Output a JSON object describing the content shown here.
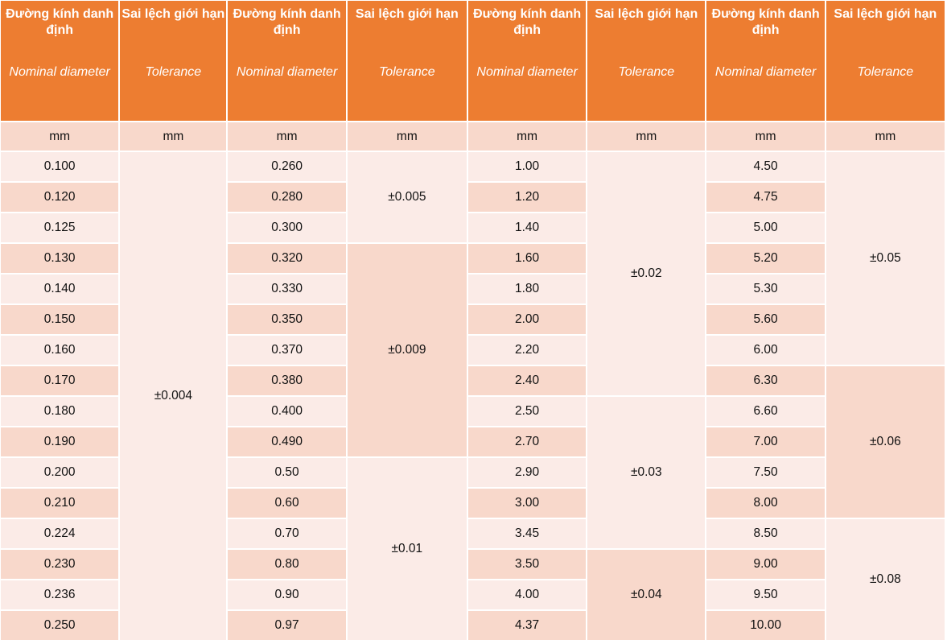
{
  "header": {
    "nominal_vn": "Đường kính danh định",
    "nominal_en": "Nominal diameter",
    "tolerance_vn": "Sai lệch giới hạn",
    "tolerance_en": "Tolerance",
    "unit": "mm"
  },
  "col1": [
    "0.100",
    "0.120",
    "0.125",
    "0.130",
    "0.140",
    "0.150",
    "0.160",
    "0.170",
    "0.180",
    "0.190",
    "0.200",
    "0.210",
    "0.224",
    "0.230",
    "0.236",
    "0.250"
  ],
  "col2": [
    "0.260",
    "0.280",
    "0.300",
    "0.320",
    "0.330",
    "0.350",
    "0.370",
    "0.380",
    "0.400",
    "0.490",
    "0.50",
    "0.60",
    "0.70",
    "0.80",
    "0.90",
    "0.97"
  ],
  "col3": [
    "1.00",
    "1.20",
    "1.40",
    "1.60",
    "1.80",
    "2.00",
    "2.20",
    "2.40",
    "2.50",
    "2.70",
    "2.90",
    "3.00",
    "3.45",
    "3.50",
    "4.00",
    "4.37"
  ],
  "col4": [
    "4.50",
    "4.75",
    "5.00",
    "5.20",
    "5.30",
    "5.60",
    "6.00",
    "6.30",
    "6.60",
    "7.00",
    "7.50",
    "8.00",
    "8.50",
    "9.00",
    "9.50",
    "10.00"
  ],
  "tol1": [
    "±0.004"
  ],
  "tol2": [
    "±0.005",
    "±0.009",
    "±0.01"
  ],
  "tol3": [
    "±0.02",
    "±0.03",
    "±0.04"
  ],
  "tol4": [
    "±0.05",
    "±0.06",
    "±0.08"
  ]
}
